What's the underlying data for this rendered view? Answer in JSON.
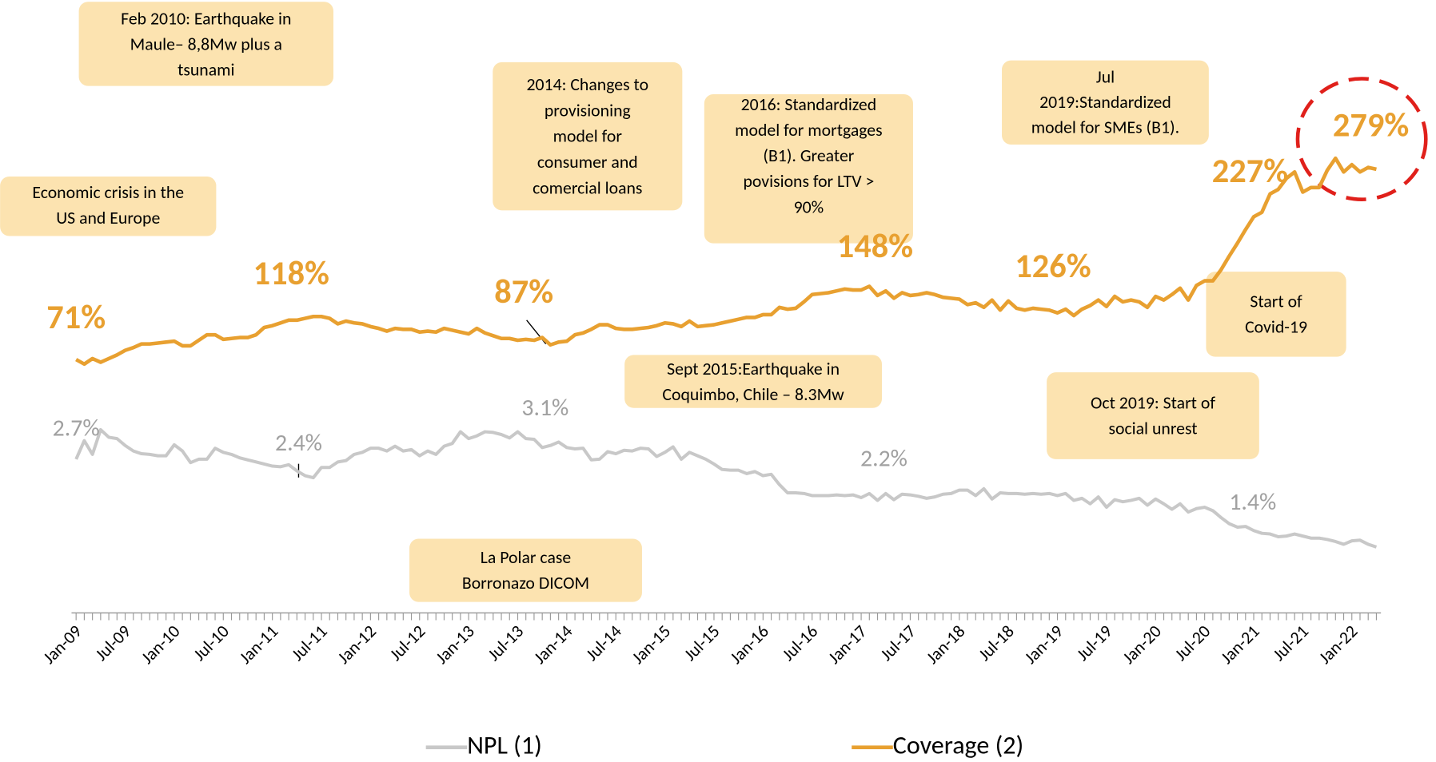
{
  "chart_data": {
    "type": "line",
    "categories": [
      "Jan-09",
      null,
      null,
      null,
      null,
      null,
      "Jul-09",
      null,
      null,
      null,
      null,
      null,
      "Jan-10",
      null,
      null,
      null,
      null,
      null,
      "Jul-10",
      null,
      null,
      null,
      null,
      null,
      "Jan-11",
      null,
      null,
      null,
      null,
      null,
      "Jul-11",
      null,
      null,
      null,
      null,
      null,
      "Jan-12",
      null,
      null,
      null,
      null,
      null,
      "Jul-12",
      null,
      null,
      null,
      null,
      null,
      "Jan-13",
      null,
      null,
      null,
      null,
      null,
      "Jul-13",
      null,
      null,
      null,
      null,
      null,
      "Jan-14",
      null,
      null,
      null,
      null,
      null,
      "Jul-14",
      null,
      null,
      null,
      null,
      null,
      "Jan-15",
      null,
      null,
      null,
      null,
      null,
      "Jul-15",
      null,
      null,
      null,
      null,
      null,
      "Jan-16",
      null,
      null,
      null,
      null,
      null,
      "Jul-16",
      null,
      null,
      null,
      null,
      null,
      "Jan-17",
      null,
      null,
      null,
      null,
      null,
      "Jul-17",
      null,
      null,
      null,
      null,
      null,
      "Jan-18",
      null,
      null,
      null,
      null,
      null,
      "Jul-18",
      null,
      null,
      null,
      null,
      null,
      "Jan-19",
      null,
      null,
      null,
      null,
      null,
      "Jul-19",
      null,
      null,
      null,
      null,
      null,
      "Jan-20",
      null,
      null,
      null,
      null,
      null,
      "Jul-20",
      null,
      null,
      null,
      null,
      null,
      "Jan-21",
      null,
      null,
      null,
      null,
      null,
      "Jul-21",
      null,
      null,
      null,
      null,
      null,
      "Jan-22",
      null,
      null,
      null
    ],
    "series": [
      {
        "name": "NPL (1)",
        "color": "#c8c8c8",
        "axis": "y2",
        "values": [
          2.7,
          2.97,
          2.77,
          3.13,
          3.02,
          3.0,
          2.9,
          2.82,
          2.78,
          2.77,
          2.75,
          2.75,
          2.91,
          2.82,
          2.65,
          2.7,
          2.7,
          2.86,
          2.8,
          2.77,
          2.72,
          2.69,
          2.66,
          2.63,
          2.6,
          2.59,
          2.62,
          2.53,
          2.46,
          2.43,
          2.58,
          2.58,
          2.66,
          2.68,
          2.77,
          2.8,
          2.86,
          2.86,
          2.82,
          2.89,
          2.82,
          2.84,
          2.75,
          2.82,
          2.77,
          2.89,
          2.93,
          3.1,
          3.0,
          3.04,
          3.1,
          3.09,
          3.06,
          3.01,
          3.1,
          3.0,
          2.99,
          2.87,
          2.9,
          2.95,
          2.87,
          2.85,
          2.86,
          2.69,
          2.7,
          2.81,
          2.78,
          2.83,
          2.82,
          2.86,
          2.85,
          2.74,
          2.8,
          2.88,
          2.7,
          2.8,
          2.75,
          2.7,
          2.63,
          2.55,
          2.54,
          2.54,
          2.49,
          2.52,
          2.46,
          2.48,
          2.33,
          2.21,
          2.21,
          2.2,
          2.17,
          2.17,
          2.17,
          2.18,
          2.17,
          2.18,
          2.14,
          2.2,
          2.1,
          2.2,
          2.11,
          2.19,
          2.18,
          2.16,
          2.13,
          2.15,
          2.19,
          2.2,
          2.25,
          2.25,
          2.17,
          2.27,
          2.12,
          2.21,
          2.2,
          2.2,
          2.19,
          2.2,
          2.19,
          2.2,
          2.17,
          2.2,
          2.1,
          2.13,
          2.05,
          2.15,
          2.0,
          2.11,
          2.08,
          2.1,
          2.13,
          2.03,
          2.12,
          2.05,
          1.97,
          2.05,
          1.93,
          1.98,
          2.0,
          1.95,
          1.85,
          1.76,
          1.71,
          1.72,
          1.66,
          1.62,
          1.61,
          1.57,
          1.58,
          1.61,
          1.58,
          1.55,
          1.55,
          1.53,
          1.5,
          1.46,
          1.51,
          1.52,
          1.46,
          1.42
        ],
        "value_labels": [
          "2.7%",
          null,
          null,
          null,
          null,
          null,
          null,
          null,
          null,
          null,
          null,
          null,
          null,
          null,
          null,
          null,
          null,
          null,
          null,
          null,
          null,
          null,
          null,
          null,
          null,
          null,
          null,
          null,
          null,
          "2.4%",
          null,
          null,
          null,
          null,
          null,
          null,
          null,
          null,
          null,
          null,
          null,
          null,
          null,
          null,
          null,
          null,
          null,
          null,
          null,
          null,
          null,
          null,
          null,
          null,
          "3.1%",
          null,
          null,
          null,
          null,
          null,
          null,
          null,
          null,
          null,
          null,
          null,
          null,
          null,
          null,
          null,
          null,
          null,
          null,
          null,
          null,
          null,
          null,
          null,
          null,
          null,
          null,
          null,
          null,
          null,
          null,
          null,
          null,
          null,
          null,
          null,
          null,
          null,
          null,
          null,
          null,
          null,
          null,
          null,
          null,
          "2.2%",
          null,
          null,
          null,
          null,
          null,
          null,
          null,
          null,
          null,
          null,
          null,
          null,
          null,
          null,
          null,
          null,
          null,
          null,
          null,
          null,
          null,
          null,
          null,
          null,
          null,
          null,
          null,
          null,
          null,
          null,
          null,
          null,
          null,
          null,
          null,
          null,
          null,
          null,
          null,
          null,
          null,
          null,
          null,
          null,
          null,
          null,
          null,
          null,
          null,
          null,
          null,
          null,
          null,
          null,
          null,
          null,
          null,
          null,
          null,
          "1.4%"
        ]
      },
      {
        "name": "Coverage (2)",
        "color": "#e8a030",
        "axis": "y",
        "values": [
          71,
          66,
          72,
          68,
          72,
          76,
          81,
          84,
          88,
          88,
          89,
          90,
          91,
          86,
          86,
          92,
          98,
          98,
          93,
          94,
          95,
          95,
          98,
          106,
          108,
          111,
          114,
          114,
          116,
          118,
          118,
          116,
          110,
          113,
          111,
          110,
          107,
          105,
          102,
          105,
          104,
          104,
          101,
          102,
          101,
          105,
          103,
          101,
          99,
          105,
          100,
          97,
          94,
          94,
          92,
          93,
          92,
          95,
          87,
          90,
          91,
          98,
          100,
          104,
          109,
          109,
          105,
          104,
          104,
          105,
          106,
          108,
          111,
          110,
          107,
          113,
          107,
          108,
          109,
          111,
          113,
          115,
          117,
          117,
          120,
          120,
          128,
          126,
          127,
          134,
          142,
          143,
          144,
          146,
          148,
          147,
          147,
          151,
          141,
          146,
          138,
          144,
          141,
          142,
          144,
          142,
          139,
          138,
          137,
          131,
          133,
          128,
          136,
          125,
          135,
          127,
          125,
          127,
          126,
          125,
          122,
          126,
          119,
          126,
          130,
          136,
          129,
          140,
          134,
          136,
          134,
          128,
          140,
          136,
          142,
          149,
          136,
          152,
          157,
          157,
          169,
          184,
          198,
          213,
          227,
          232,
          252,
          257,
          269,
          276,
          254,
          259,
          259,
          278,
          291,
          276,
          284,
          276,
          281,
          279
        ],
        "value_labels": [
          "71%",
          null,
          null,
          null,
          null,
          null,
          null,
          null,
          null,
          null,
          null,
          null,
          null,
          null,
          null,
          null,
          null,
          null,
          null,
          null,
          null,
          null,
          null,
          null,
          null,
          null,
          null,
          null,
          null,
          "118%",
          null,
          null,
          null,
          null,
          null,
          null,
          null,
          null,
          null,
          null,
          null,
          null,
          null,
          null,
          null,
          null,
          null,
          null,
          null,
          null,
          null,
          null,
          null,
          null,
          null,
          null,
          null,
          null,
          "87%",
          null,
          null,
          null,
          null,
          null,
          null,
          null,
          null,
          null,
          null,
          null,
          null,
          null,
          null,
          null,
          null,
          null,
          null,
          null,
          null,
          null,
          null,
          null,
          null,
          null,
          null,
          null,
          null,
          null,
          null,
          null,
          null,
          null,
          null,
          null,
          "148%",
          null,
          null,
          null,
          null,
          null,
          null,
          null,
          null,
          null,
          null,
          null,
          null,
          null,
          null,
          null,
          null,
          null,
          null,
          null,
          null,
          null,
          null,
          null,
          "126%",
          null,
          null,
          null,
          null,
          null,
          null,
          null,
          null,
          null,
          null,
          null,
          null,
          null,
          null,
          null,
          null,
          null,
          null,
          null,
          null,
          null,
          null,
          null,
          null,
          null,
          "227%",
          null,
          null,
          null,
          null,
          null,
          null,
          null,
          null,
          null,
          null,
          null,
          null,
          null,
          null,
          "279%"
        ]
      }
    ],
    "ylim": [
      0,
      300
    ],
    "y2lim": [
      0,
      4
    ],
    "legend": "bottom",
    "annotations": [
      {
        "lines": [
          "Feb 2010: Earthquake in",
          "Maule– 8,8Mw plus a",
          "tsunami"
        ]
      },
      {
        "lines": [
          "Economic crisis in the",
          "US and Europe"
        ]
      },
      {
        "lines": [
          "2014: Changes to",
          "provisioning",
          "model for",
          "consumer and",
          "comercial loans"
        ]
      },
      {
        "lines": [
          "2016: Standardized",
          "model for mortgages",
          "(B1). Greater",
          "povisions for LTV >",
          "90%"
        ]
      },
      {
        "lines": [
          "Jul",
          "2019:Standardized",
          "model for SMEs (B1)."
        ]
      },
      {
        "lines": [
          "Sept 2015:Earthquake in",
          "Coquimbo, Chile – 8.3Mw"
        ]
      },
      {
        "lines": [
          "Start of",
          "Covid-19"
        ]
      },
      {
        "lines": [
          "Oct 2019: Start of",
          "social unrest"
        ]
      },
      {
        "lines": [
          "La Polar case",
          "Borronazo DICOM"
        ]
      }
    ]
  }
}
